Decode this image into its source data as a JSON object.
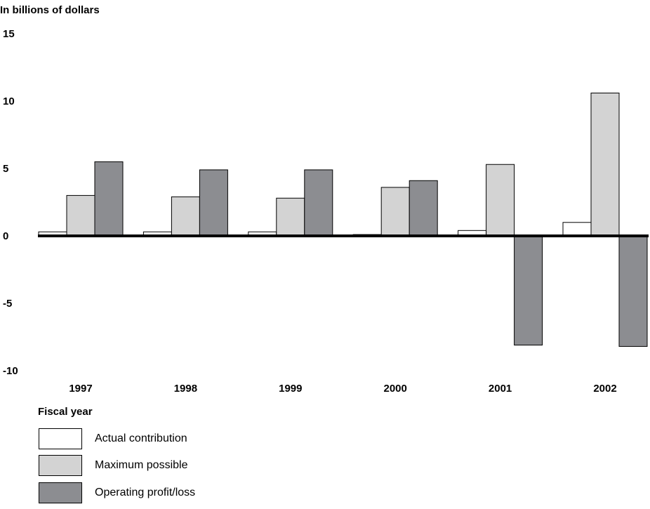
{
  "chart_data": {
    "type": "bar",
    "ylabel": "In billions of dollars",
    "xlabel": "Fiscal year",
    "categories": [
      "1997",
      "1998",
      "1999",
      "2000",
      "2001",
      "2002"
    ],
    "ylim": [
      -10,
      15
    ],
    "yticks": [
      15,
      10,
      5,
      0,
      -5,
      -10
    ],
    "series": [
      {
        "name": "Actual contribution",
        "color": "#ffffff",
        "values": [
          0.3,
          0.3,
          0.3,
          0.1,
          0.4,
          1.0
        ]
      },
      {
        "name": "Maximum possible",
        "color": "#d3d3d3",
        "values": [
          3.0,
          2.9,
          2.8,
          3.6,
          5.3,
          10.6
        ]
      },
      {
        "name": "Operating profit/loss",
        "color": "#8c8d91",
        "values": [
          5.5,
          4.9,
          4.9,
          4.1,
          -8.1,
          -8.2
        ]
      }
    ],
    "grid": false,
    "legend_position": "bottom-left"
  }
}
